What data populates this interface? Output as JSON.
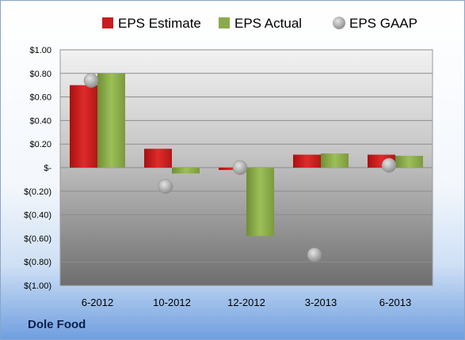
{
  "chart_data": {
    "type": "bar",
    "categories": [
      "6-2012",
      "10-2012",
      "12-2012",
      "3-2013",
      "6-2013"
    ],
    "series": [
      {
        "name": "EPS Estimate",
        "kind": "bar",
        "color": "#c81e1e",
        "values": [
          0.7,
          0.16,
          -0.02,
          0.11,
          0.11
        ]
      },
      {
        "name": "EPS Actual",
        "kind": "bar",
        "color": "#8aab4a",
        "values": [
          0.8,
          -0.05,
          -0.58,
          0.12,
          0.1
        ]
      },
      {
        "name": "EPS GAAP",
        "kind": "marker",
        "color": "#a9a9a9",
        "values": [
          0.74,
          -0.16,
          0.0,
          -0.74,
          0.02
        ]
      }
    ],
    "yticks": [
      {
        "value": 1.0,
        "label": "$1.00"
      },
      {
        "value": 0.8,
        "label": "$0.80"
      },
      {
        "value": 0.6,
        "label": "$0.60"
      },
      {
        "value": 0.4,
        "label": "$0.40"
      },
      {
        "value": 0.2,
        "label": "$0.20"
      },
      {
        "value": 0.0,
        "label": "$-"
      },
      {
        "value": -0.2,
        "label": "$(0.20)"
      },
      {
        "value": -0.4,
        "label": "$(0.40)"
      },
      {
        "value": -0.6,
        "label": "$(0.60)"
      },
      {
        "value": -0.8,
        "label": "$(0.80)"
      },
      {
        "value": -1.0,
        "label": "$(1.00)"
      }
    ],
    "ylim": [
      -1.0,
      1.0
    ],
    "grid": true,
    "legend_position": "top",
    "company": "Dole Food"
  }
}
